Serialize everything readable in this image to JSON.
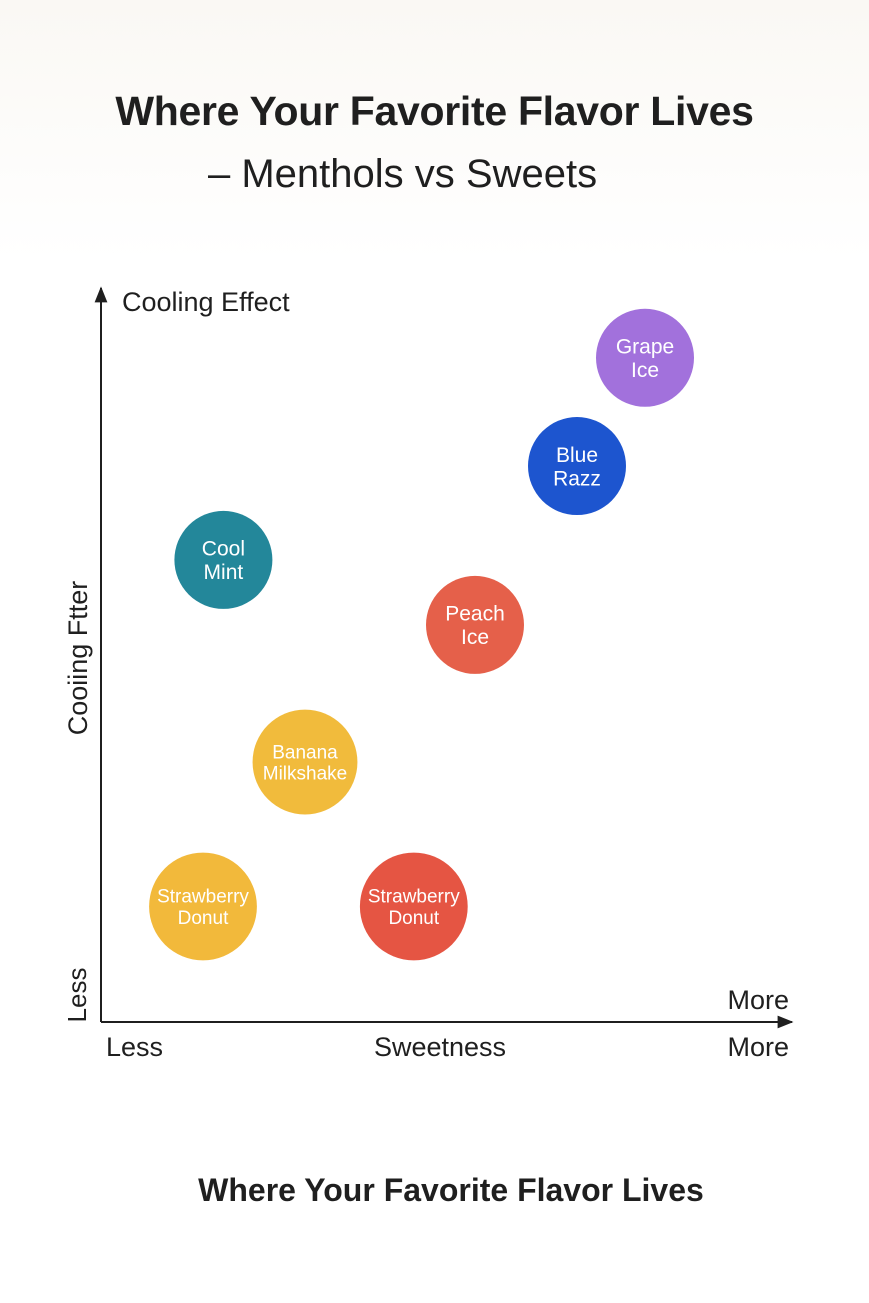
{
  "title": "Where Your Favorite Flavor Lives",
  "subtitle": "– Menthols vs Sweets",
  "footer": "Where Your Favorite Flavor Lives",
  "chart_data": {
    "type": "scatter",
    "top_label": "Cooling Effect",
    "ylabel": "Cooiing Ftter",
    "ylabel_low": "Less",
    "ylabel_high": "More",
    "xlabel": "Sweetness",
    "xlabel_low": "Less",
    "xlabel_high": "More",
    "xlim": [
      0,
      10
    ],
    "ylim": [
      0,
      10
    ],
    "grid": false,
    "legend": "none",
    "points": [
      {
        "label": [
          "Grape",
          "Ice"
        ],
        "x": 8.0,
        "y": 9.2,
        "size": 1.0,
        "color": "#a271dc"
      },
      {
        "label": [
          "Blue",
          "Razz"
        ],
        "x": 7.0,
        "y": 7.7,
        "size": 1.0,
        "color": "#1d55cf"
      },
      {
        "label": [
          "Cool",
          "Mint"
        ],
        "x": 1.8,
        "y": 6.4,
        "size": 1.0,
        "color": "#23879a"
      },
      {
        "label": [
          "Peach",
          "Ice"
        ],
        "x": 5.5,
        "y": 5.5,
        "size": 1.0,
        "color": "#e5604a"
      },
      {
        "label": [
          "Banana",
          "Milkshake"
        ],
        "x": 3.0,
        "y": 3.6,
        "size": 1.07,
        "color": "#f1bb3c"
      },
      {
        "label": [
          "Strawberry",
          "Donut"
        ],
        "x": 1.5,
        "y": 1.6,
        "size": 1.1,
        "color": "#f2b93b"
      },
      {
        "label": [
          "Strawberry",
          "Donut"
        ],
        "x": 4.6,
        "y": 1.6,
        "size": 1.1,
        "color": "#e55543"
      }
    ]
  }
}
